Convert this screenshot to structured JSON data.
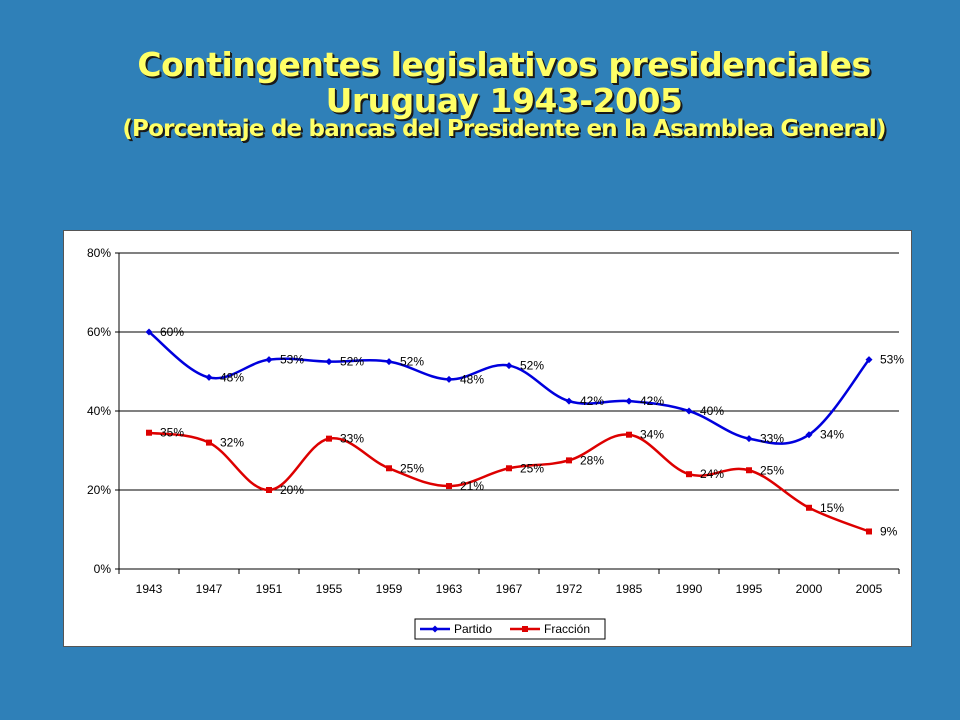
{
  "title": {
    "line1": "Contingentes legislativos presidenciales",
    "line2": "Uruguay 1943-2005",
    "line3": "(Porcentaje de bancas del Presidente en la Asamblea General)"
  },
  "chart_data": {
    "type": "line",
    "categories": [
      "1943",
      "1947",
      "1951",
      "1955",
      "1959",
      "1963",
      "1967",
      "1972",
      "1985",
      "1990",
      "1995",
      "2000",
      "2005"
    ],
    "y_ticks": [
      "0%",
      "20%",
      "40%",
      "60%",
      "80%"
    ],
    "ylim": [
      0,
      80
    ],
    "grid": true,
    "legend_position": "bottom",
    "series": [
      {
        "name": "Partido",
        "color": "#0000dd",
        "marker": "diamond",
        "values": [
          60,
          48.5,
          53,
          52.5,
          52.5,
          48,
          51.5,
          42.5,
          42.5,
          40,
          33,
          34,
          53
        ],
        "labels": [
          "60%",
          "48%",
          "53%",
          "52%",
          "52%",
          "48%",
          "52%",
          "42%",
          "42%",
          "40%",
          "33%",
          "34%",
          "53%"
        ]
      },
      {
        "name": "Fracción",
        "color": "#dd0000",
        "marker": "square",
        "values": [
          34.5,
          32,
          20,
          33,
          25.5,
          21,
          25.5,
          27.5,
          34,
          24,
          25,
          15.5,
          9.5
        ],
        "labels": [
          "35%",
          "32%",
          "20%",
          "33%",
          "25%",
          "21%",
          "25%",
          "28%",
          "34%",
          "24%",
          "25%",
          "15%",
          "9%"
        ]
      }
    ]
  }
}
